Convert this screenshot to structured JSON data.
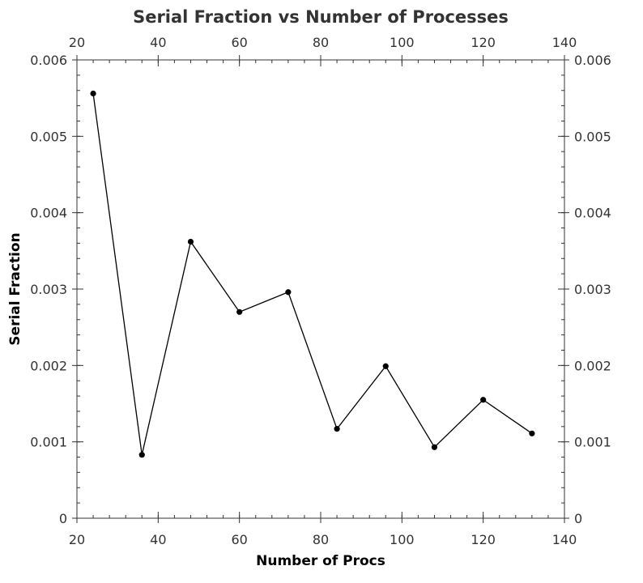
{
  "chart_data": {
    "type": "line",
    "title": "Serial Fraction vs Number of Processes",
    "xlabel": "Number of Procs",
    "ylabel": "Serial Fraction",
    "xlim": [
      20,
      140
    ],
    "ylim": [
      0,
      0.006
    ],
    "x_ticks": [
      20,
      40,
      60,
      80,
      100,
      120,
      140
    ],
    "x_tick_labels": [
      "20",
      "40",
      "60",
      "80",
      "100",
      "120",
      "140"
    ],
    "y_ticks": [
      0,
      0.001,
      0.002,
      0.003,
      0.004,
      0.005,
      0.006
    ],
    "y_tick_labels": [
      "0",
      "0.001",
      "0.002",
      "0.003",
      "0.004",
      "0.005",
      "0.006"
    ],
    "x_minor_step": 4,
    "y_minor_step": 0.0002,
    "grid": false,
    "legend": "none",
    "series": [
      {
        "x": [
          24,
          36,
          48,
          60,
          72,
          84,
          96,
          108,
          120,
          132
        ],
        "y": [
          0.00556,
          0.00083,
          0.00362,
          0.0027,
          0.00296,
          0.00117,
          0.00199,
          0.00093,
          0.00155,
          0.00111
        ],
        "color": "#000000"
      }
    ]
  }
}
